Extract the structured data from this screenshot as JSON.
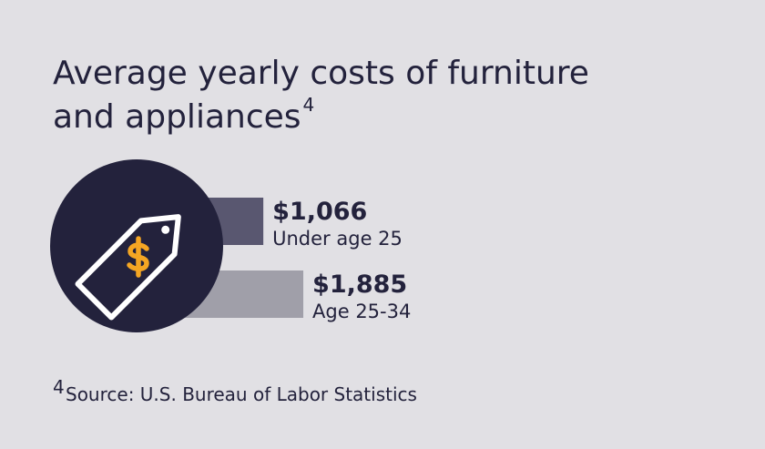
{
  "chart_data": {
    "type": "bar",
    "orientation": "horizontal",
    "title": "Average yearly costs of furniture and appliances",
    "title_note": "4",
    "categories": [
      "Under age 25",
      "Age 25-34"
    ],
    "values": [
      1066,
      1885
    ],
    "value_labels": [
      "$1,066",
      "$1,885"
    ],
    "colors": [
      "#595770",
      "#a09fa9"
    ],
    "source_note": "4",
    "source": "Source: U.S. Bureau of Labor Statistics"
  }
}
